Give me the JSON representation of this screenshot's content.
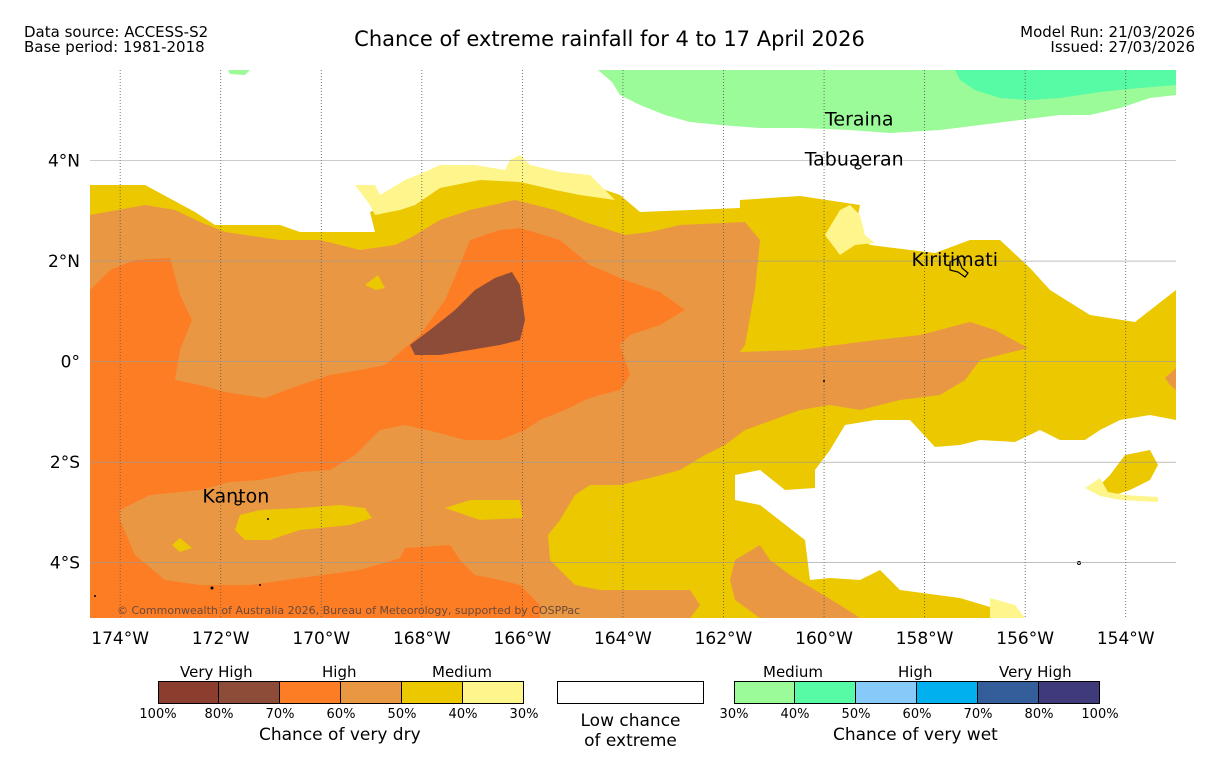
{
  "header": {
    "data_source": "Data source: ACCESS-S2",
    "base_period": "Base period: 1981-2018",
    "title": "Chance of extreme rainfall for 4 to 17 April 2026",
    "model_run": "Model Run: 21/03/2026",
    "issued": "Issued: 27/03/2026"
  },
  "map": {
    "lon_range": [
      -174.6,
      -153.0
    ],
    "lat_range": [
      -5.1,
      5.8
    ],
    "x_ticks": [
      "174°W",
      "172°W",
      "170°W",
      "168°W",
      "166°W",
      "164°W",
      "162°W",
      "160°W",
      "158°W",
      "156°W",
      "154°W"
    ],
    "x_tick_values": [
      -174,
      -172,
      -170,
      -168,
      -166,
      -164,
      -162,
      -160,
      -158,
      -156,
      -154
    ],
    "y_ticks": [
      "4°N",
      "2°N",
      "0°",
      "2°S",
      "4°S"
    ],
    "y_tick_values": [
      4,
      2,
      0,
      -2,
      -4
    ],
    "places": [
      {
        "name": "Teraina",
        "lon": -159.3,
        "lat": 4.7
      },
      {
        "name": "Tabuaeran",
        "lon": -159.4,
        "lat": 3.9
      },
      {
        "name": "Kiritimati",
        "lon": -157.4,
        "lat": 1.9
      },
      {
        "name": "Kanton",
        "lon": -171.7,
        "lat": -2.8
      }
    ],
    "copyright": "© Commonwealth of Australia 2026, Bureau of Meteorology, supported by COSPPac"
  },
  "legend": {
    "dry": {
      "categories": [
        "Very High",
        "High",
        "Medium"
      ],
      "colors": [
        "#8c3e2e",
        "#8c4c38",
        "#fd7d24",
        "#ea9744",
        "#ebc800",
        "#fef58c"
      ],
      "ticks": [
        "100%",
        "80%",
        "70%",
        "60%",
        "50%",
        "40%",
        "30%"
      ],
      "caption": "Chance of very dry"
    },
    "low": {
      "line1": "Low chance",
      "line2": "of extreme"
    },
    "wet": {
      "categories": [
        "Medium",
        "High",
        "Very High"
      ],
      "colors": [
        "#9bfb98",
        "#57fba6",
        "#87cafa",
        "#00b0ef",
        "#345e9a",
        "#3f3a7a"
      ],
      "ticks": [
        "30%",
        "40%",
        "50%",
        "60%",
        "70%",
        "80%",
        "100%"
      ],
      "caption": "Chance of very wet"
    }
  }
}
